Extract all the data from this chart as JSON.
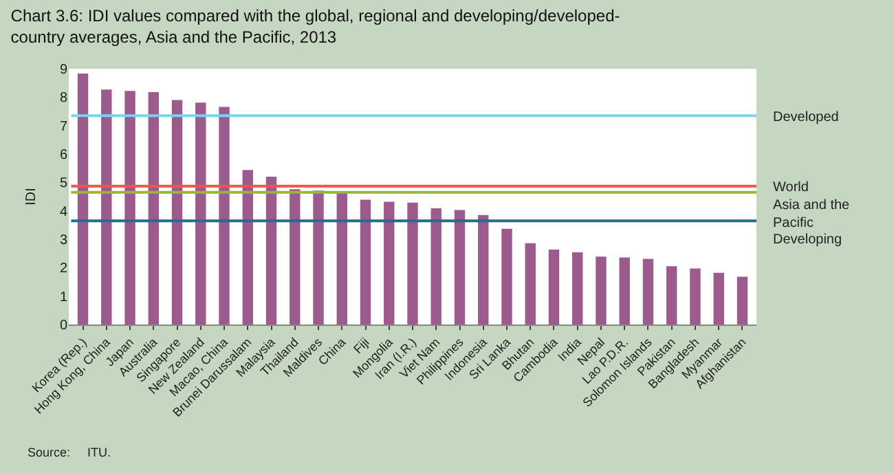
{
  "chart_data": {
    "type": "bar",
    "title": "Chart 3.6: IDI values compared with the global, regional and developing/developed-country averages, Asia and the Pacific, 2013",
    "ylabel": "IDI",
    "categories": [
      "Korea (Rep.)",
      "Hong Kong, China",
      "Japan",
      "Australia",
      "Singapore",
      "New Zealand",
      "Macao, China",
      "Brunei Darussalam",
      "Malaysia",
      "Thailand",
      "Maldives",
      "China",
      "Fiji",
      "Mongolia",
      "Iran (I.R.)",
      "Viet Nam",
      "Philippines",
      "Indonesia",
      "Sri Lanka",
      "Bhutan",
      "Cambodia",
      "India",
      "Nepal",
      "Lao P.D.R.",
      "Solomon Islands",
      "Pakistan",
      "Bangladesh",
      "Myanmar",
      "Afghanistan"
    ],
    "values": [
      8.83,
      8.27,
      8.22,
      8.18,
      7.9,
      7.81,
      7.66,
      5.44,
      5.2,
      4.76,
      4.71,
      4.63,
      4.39,
      4.32,
      4.29,
      4.09,
      4.03,
      3.85,
      3.37,
      2.86,
      2.64,
      2.54,
      2.39,
      2.36,
      2.31,
      2.05,
      1.97,
      1.82,
      1.68
    ],
    "color": "#9b5b8c",
    "ylim": [
      0,
      9
    ],
    "yticks": [
      0,
      1,
      2,
      3,
      4,
      5,
      6,
      7,
      8,
      9
    ],
    "ref_lines": [
      {
        "axis": "y",
        "value": 7.35,
        "label": "Developed",
        "color": "#7fd0ee"
      },
      {
        "axis": "y",
        "value": 4.87,
        "label": "World",
        "color": "#f0554a"
      },
      {
        "axis": "y",
        "value": 4.65,
        "label": "Asia and the Pacific",
        "color": "#9bb634"
      },
      {
        "axis": "y",
        "value": 3.65,
        "label": "Developing",
        "color": "#1f6e8c"
      }
    ],
    "annotations": [
      "Source:     ITU."
    ]
  }
}
